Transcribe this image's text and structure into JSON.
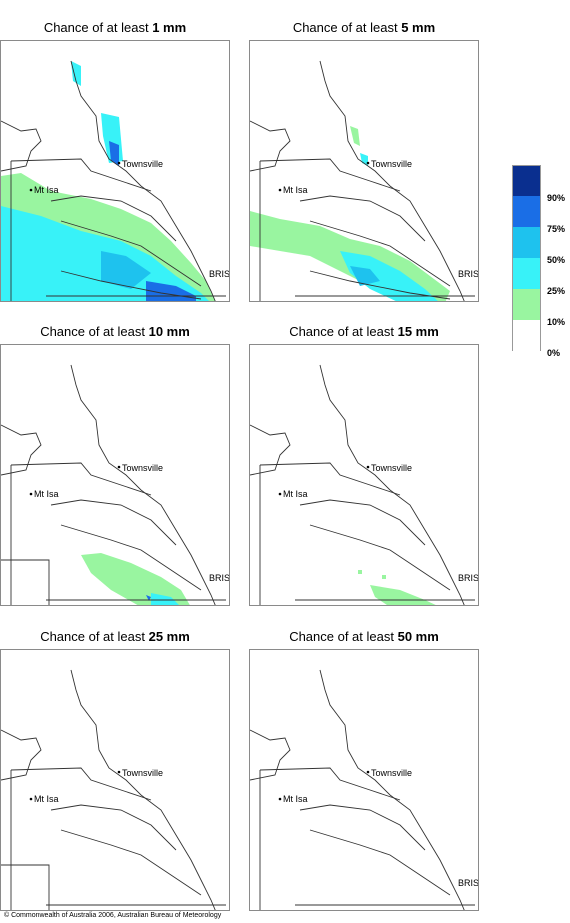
{
  "panels": [
    {
      "title_prefix": "Chance of at least ",
      "threshold": "1 mm"
    },
    {
      "title_prefix": "Chance of at least ",
      "threshold": "5 mm"
    },
    {
      "title_prefix": "Chance of at least ",
      "threshold": "10 mm"
    },
    {
      "title_prefix": "Chance of at least ",
      "threshold": "15 mm"
    },
    {
      "title_prefix": "Chance of at least ",
      "threshold": "25 mm"
    },
    {
      "title_prefix": "Chance of at least ",
      "threshold": "50 mm"
    }
  ],
  "places": {
    "townsville": "Townsville",
    "mt_isa": "Mt Isa",
    "bris": "BRIS"
  },
  "legend": {
    "bands": [
      {
        "label": "90%",
        "color": "#0a2f8f"
      },
      {
        "label": "75%",
        "color": "#1a6ee6"
      },
      {
        "label": "50%",
        "color": "#1ec2ee"
      },
      {
        "label": "25%",
        "color": "#38f2f8"
      },
      {
        "label": "10%",
        "color": "#99f5a0"
      },
      {
        "label": "0%",
        "color": "#ffffff"
      }
    ]
  },
  "copyright": "© Commonwealth of Australia 2006, Australian Bureau of Meteorology"
}
